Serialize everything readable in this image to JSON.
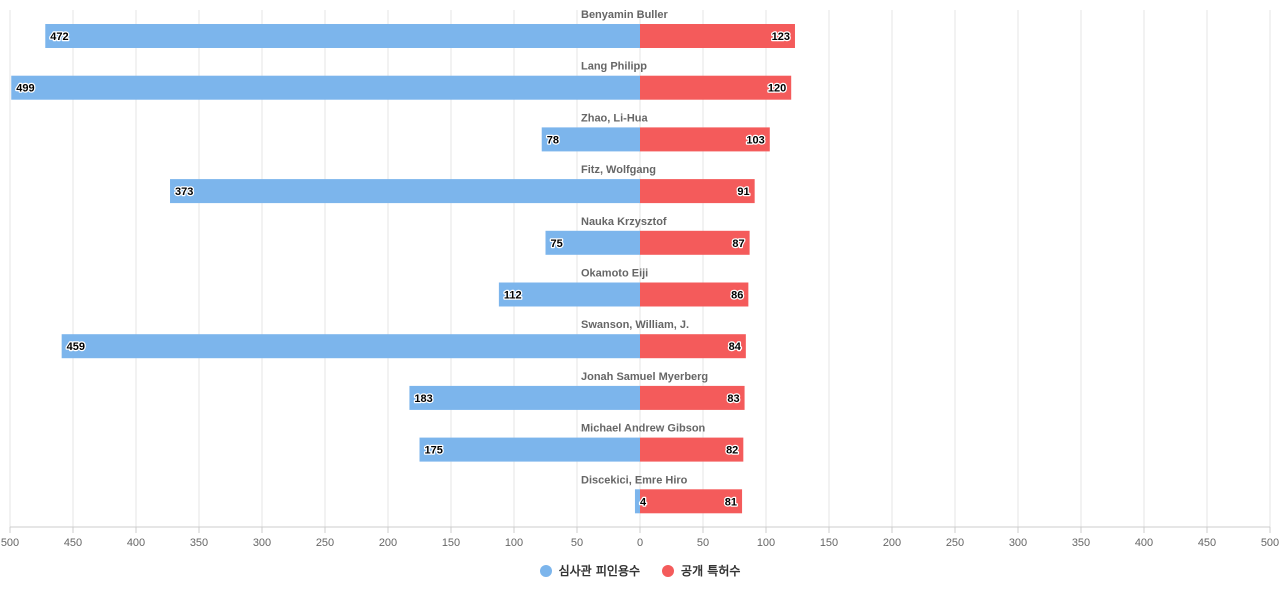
{
  "chart_data": {
    "type": "bar",
    "orientation": "horizontal-diverging",
    "categories": [
      "Benyamin Buller",
      "Lang Philipp",
      "Zhao, Li-Hua",
      "Fitz, Wolfgang",
      "Nauka Krzysztof",
      "Okamoto Eiji",
      "Swanson, William, J.",
      "Jonah Samuel Myerberg",
      "Michael Andrew Gibson",
      "Discekici, Emre Hiro"
    ],
    "series": [
      {
        "name": "심사관 피인용수",
        "color": "#7cb5ec",
        "side": "left",
        "values": [
          472,
          499,
          78,
          373,
          75,
          112,
          459,
          183,
          175,
          4
        ]
      },
      {
        "name": "공개 특허수",
        "color": "#f45b5b",
        "side": "right",
        "values": [
          123,
          120,
          103,
          91,
          87,
          86,
          84,
          83,
          82,
          81
        ]
      }
    ],
    "xlim": [
      -500,
      500
    ],
    "ticks": [
      500,
      450,
      400,
      350,
      300,
      250,
      200,
      150,
      100,
      50,
      0,
      50,
      100,
      150,
      200,
      250,
      300,
      350,
      400,
      450,
      500
    ],
    "grid": true,
    "legend_position": "bottom-center"
  }
}
